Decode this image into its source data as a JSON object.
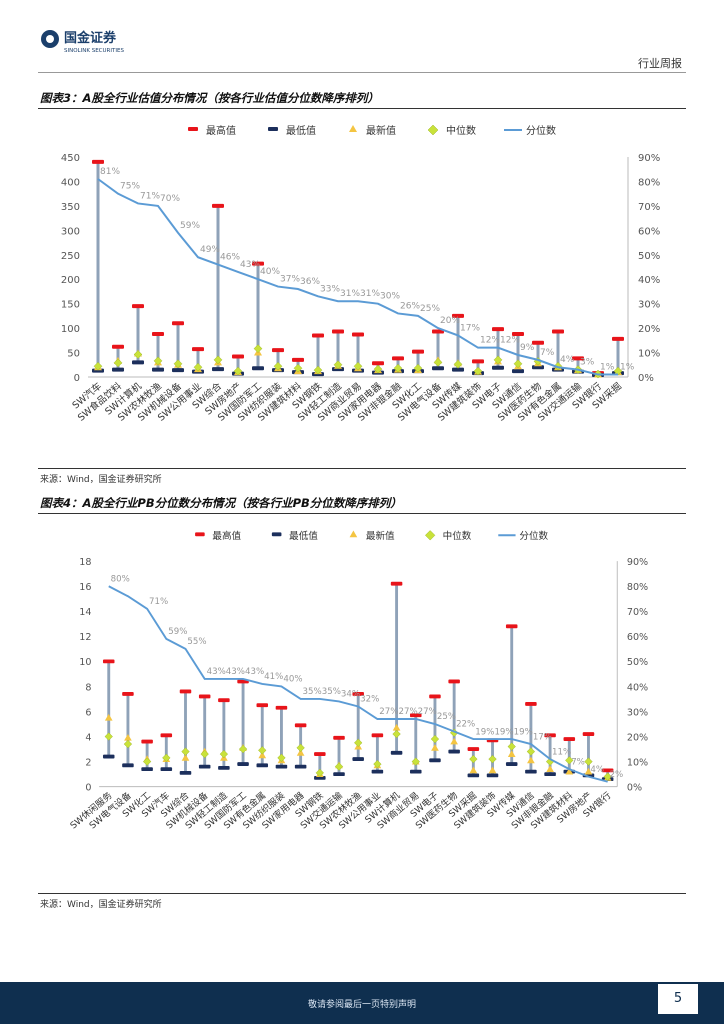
{
  "header": {
    "company_cn": "国金证券",
    "company_en": "SINOLINK SECURITIES",
    "section": "行业周报",
    "brand_color": "#1b3f6b"
  },
  "legend": [
    "最高值",
    "最低值",
    "最新值",
    "中位数",
    "分位数"
  ],
  "figures": [
    {
      "title": "图表3：A股全行业估值分布情况（按各行业估值分位数降序排列）",
      "source": "来源：Wind，国金证券研究所"
    },
    {
      "title": "图表4：A股全行业PB分位数分布情况（按各行业PB分位数降序排列）",
      "source": "来源：Wind，国金证券研究所"
    }
  ],
  "chart_data": [
    {
      "type": "line",
      "title": "A股全行业估值分布情况",
      "categories": [
        "SW汽车",
        "SW食品饮料",
        "SW计算机",
        "SW农林牧渔",
        "SW机械设备",
        "SW公用事业",
        "SW综合",
        "SW房地产",
        "SW国防军工",
        "SW纺织服装",
        "SW建筑材料",
        "SW钢铁",
        "SW轻工制造",
        "SW商业贸易",
        "SW家用电器",
        "SW非银金融",
        "SW化工",
        "SW电气设备",
        "SW传媒",
        "SW建筑装饰",
        "SW电子",
        "SW通信",
        "SW医药生物",
        "SW有色金属",
        "SW交通运输",
        "SW银行",
        "SW采掘"
      ],
      "series": [
        {
          "name": "最高值",
          "values": [
            440,
            62,
            145,
            88,
            110,
            57,
            350,
            42,
            232,
            55,
            35,
            85,
            93,
            87,
            28,
            38,
            52,
            93,
            125,
            32,
            98,
            88,
            70,
            93,
            38,
            8,
            78
          ]
        },
        {
          "name": "最低值",
          "values": [
            13,
            15,
            30,
            15,
            14,
            11,
            16,
            7,
            18,
            14,
            10,
            6,
            16,
            13,
            9,
            12,
            12,
            18,
            15,
            8,
            19,
            12,
            20,
            15,
            11,
            4,
            8
          ]
        },
        {
          "name": "最新值",
          "values": [
            20,
            33,
            48,
            30,
            25,
            16,
            30,
            10,
            50,
            18,
            12,
            12,
            23,
            18,
            14,
            15,
            14,
            34,
            28,
            11,
            32,
            22,
            28,
            20,
            14,
            5,
            10
          ]
        },
        {
          "name": "中位数",
          "values": [
            22,
            29,
            46,
            33,
            27,
            20,
            35,
            12,
            58,
            22,
            18,
            14,
            25,
            22,
            16,
            18,
            18,
            30,
            26,
            12,
            35,
            27,
            32,
            22,
            15,
            6,
            12
          ]
        },
        {
          "name": "分位数",
          "values": [
            81,
            75,
            71,
            70,
            59,
            49,
            46,
            43,
            40,
            37,
            36,
            33,
            31,
            31,
            30,
            26,
            25,
            20,
            17,
            12,
            12,
            9,
            7,
            4,
            3,
            1,
            1
          ]
        }
      ],
      "labels": [
        "81%",
        "75%",
        "71%",
        "70%",
        "59%",
        "49%",
        "46%",
        "43%",
        "40%",
        "37%",
        "36%",
        "33%",
        "31%",
        "31%",
        "30%",
        "26%",
        "25%",
        "20%",
        "17%",
        "12%",
        "12%",
        "9%",
        "7%",
        "4%",
        "3%",
        "1%",
        "1%"
      ],
      "ylim": [
        0,
        450
      ],
      "yticks": [
        0,
        50,
        100,
        150,
        200,
        250,
        300,
        350,
        400,
        450
      ],
      "y2lim": [
        0,
        90
      ],
      "y2ticks": [
        "0%",
        "10%",
        "20%",
        "30%",
        "40%",
        "50%",
        "60%",
        "70%",
        "80%",
        "90%"
      ]
    },
    {
      "type": "line",
      "title": "A股全行业PB分位数分布情况",
      "categories": [
        "SW休闲服务",
        "SW电气设备",
        "SW化工",
        "SW汽车",
        "SW综合",
        "SW机械设备",
        "SW轻工制造",
        "SW国防军工",
        "SW有色金属",
        "SW纺织服装",
        "SW家用电器",
        "SW钢铁",
        "SW交通运输",
        "SW农林牧渔",
        "SW公用事业",
        "SW计算机",
        "SW商业贸易",
        "SW电子",
        "SW医药生物",
        "SW采掘",
        "SW建筑装饰",
        "SW传媒",
        "SW通信",
        "SW非银金融",
        "SW建筑材料",
        "SW房地产",
        "SW银行"
      ],
      "series": [
        {
          "name": "最高值",
          "values": [
            10.0,
            7.4,
            3.6,
            4.1,
            7.6,
            7.2,
            6.9,
            8.4,
            6.5,
            6.3,
            4.9,
            2.6,
            3.9,
            7.4,
            4.1,
            16.2,
            5.7,
            7.2,
            8.4,
            3.0,
            3.7,
            12.8,
            6.6,
            4.1,
            3.8,
            4.2,
            1.3
          ]
        },
        {
          "name": "最低值",
          "values": [
            2.4,
            1.7,
            1.4,
            1.4,
            1.1,
            1.6,
            1.5,
            1.8,
            1.7,
            1.6,
            1.6,
            0.7,
            1.0,
            2.2,
            1.2,
            2.7,
            1.2,
            2.1,
            2.8,
            0.9,
            0.9,
            1.8,
            1.2,
            1.0,
            1.2,
            0.9,
            0.6
          ]
        },
        {
          "name": "最新值",
          "values": [
            5.5,
            3.9,
            2.2,
            2.2,
            2.3,
            2.8,
            2.3,
            3.1,
            2.5,
            2.1,
            2.7,
            1.0,
            1.7,
            3.2,
            1.7,
            4.7,
            2.0,
            3.1,
            3.6,
            1.3,
            1.3,
            2.6,
            2.1,
            1.4,
            1.2,
            1.2,
            0.7
          ]
        },
        {
          "name": "中位数",
          "values": [
            4.0,
            3.4,
            2.0,
            2.3,
            2.8,
            2.6,
            2.6,
            3.0,
            2.9,
            2.3,
            3.1,
            1.1,
            1.6,
            3.5,
            1.8,
            4.2,
            2.0,
            3.8,
            4.3,
            2.2,
            2.2,
            3.2,
            2.8,
            2.0,
            2.1,
            2.0,
            0.8
          ]
        },
        {
          "name": "分位数",
          "values": [
            80,
            76,
            71,
            59,
            55,
            43,
            43,
            43,
            41,
            40,
            35,
            35,
            34,
            32,
            27,
            27,
            27,
            25,
            22,
            19,
            19,
            19,
            17,
            11,
            7,
            4,
            2
          ]
        }
      ],
      "labels": [
        "80%",
        "",
        "71%",
        "59%",
        "55%",
        "43%",
        "43%",
        "43%",
        "41%",
        "40%",
        "35%",
        "35%",
        "34%",
        "32%",
        "27%",
        "27%",
        "27%",
        "25%",
        "22%",
        "19%",
        "19%",
        "19%",
        "17%",
        "11%",
        "7%",
        "4%",
        "2%"
      ],
      "ylim": [
        0,
        18
      ],
      "yticks": [
        0,
        2,
        4,
        6,
        8,
        10,
        12,
        14,
        16,
        18
      ],
      "y2lim": [
        0,
        90
      ],
      "y2ticks": [
        "0%",
        "10%",
        "20%",
        "30%",
        "40%",
        "50%",
        "60%",
        "70%",
        "80%",
        "90%"
      ]
    }
  ],
  "colors": {
    "high": "#e8141a",
    "low": "#1c2f5c",
    "latest": "#f4c542",
    "median": "#c9e23a",
    "pct_line": "#5b9bd5",
    "whisker": "#8fa2b8"
  },
  "footer": {
    "note": "敬请参阅最后一页特别声明",
    "page": "5"
  }
}
